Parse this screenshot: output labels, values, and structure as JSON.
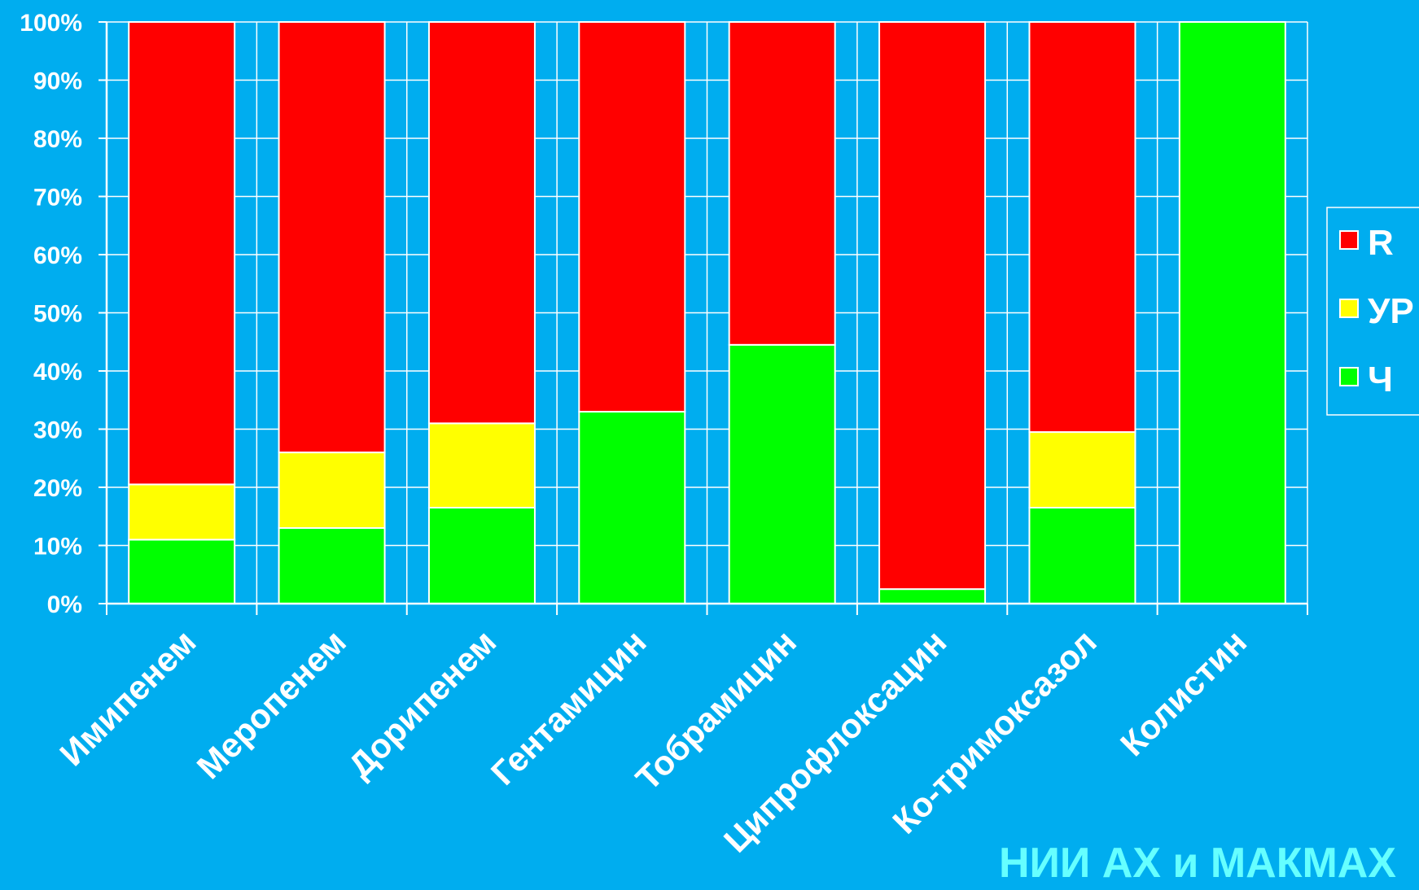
{
  "chart_data": {
    "type": "bar",
    "stacked": true,
    "percent": true,
    "categories": [
      "Имипенем",
      "Меропенем",
      "Дорипенем",
      "Гентамицин",
      "Тобрамицин",
      "Ципрофлоксацин",
      "Ко-тримоксазол",
      "Колистин"
    ],
    "series": [
      {
        "name": "Ч",
        "color": "#00FF00",
        "values": [
          11,
          13,
          16.5,
          33,
          44.5,
          2.5,
          16.5,
          100
        ]
      },
      {
        "name": "УР",
        "color": "#FFFF00",
        "values": [
          9.5,
          13,
          14.5,
          0,
          0,
          0,
          13,
          0
        ]
      },
      {
        "name": "R",
        "color": "#FF0000",
        "values": [
          79.5,
          74,
          69,
          67,
          55.5,
          97.5,
          70.5,
          0
        ]
      }
    ],
    "legend_order": [
      "R",
      "УР",
      "Ч"
    ],
    "yticks": [
      "0%",
      "10%",
      "20%",
      "30%",
      "40%",
      "50%",
      "60%",
      "70%",
      "80%",
      "90%",
      "100%"
    ],
    "ylim": [
      0,
      100
    ],
    "grid": true,
    "legend_position": "right",
    "background": "#00ADEF",
    "gridline_color": "#ffffff"
  },
  "watermark": "НИИ АХ  и МАКМАХ"
}
